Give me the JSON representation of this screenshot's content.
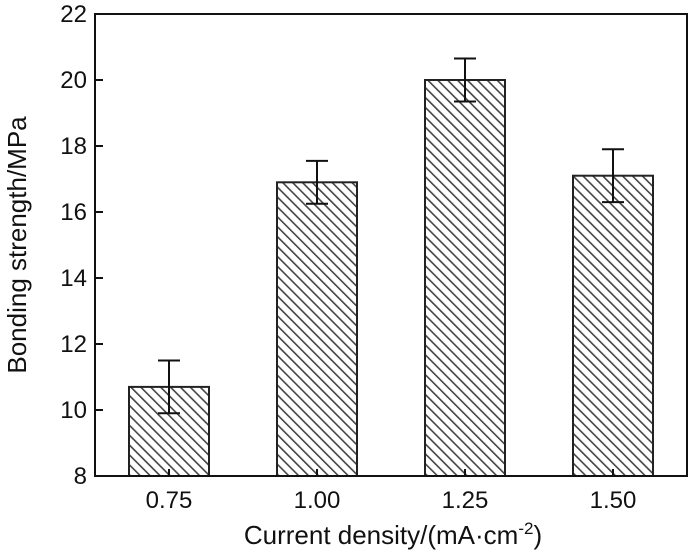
{
  "chart_data": {
    "type": "bar",
    "categories": [
      "0.75",
      "1.00",
      "1.25",
      "1.50"
    ],
    "values": [
      10.7,
      16.9,
      20.0,
      17.1
    ],
    "errors": [
      0.8,
      0.65,
      0.65,
      0.8
    ],
    "xlabel": "Current density/(mA·cm",
    "xlabel_superscript": "-2",
    "xlabel_suffix": ")",
    "ylabel": "Bonding strength/MPa",
    "ylim": [
      8,
      22
    ],
    "yticks": [
      8,
      10,
      12,
      14,
      16,
      18,
      20,
      22
    ],
    "grid": false,
    "legend": "none",
    "bar_fill": "hatched",
    "colors": {
      "bar_edge": "#222222",
      "hatch": "#444444",
      "axis": "#111111"
    }
  }
}
